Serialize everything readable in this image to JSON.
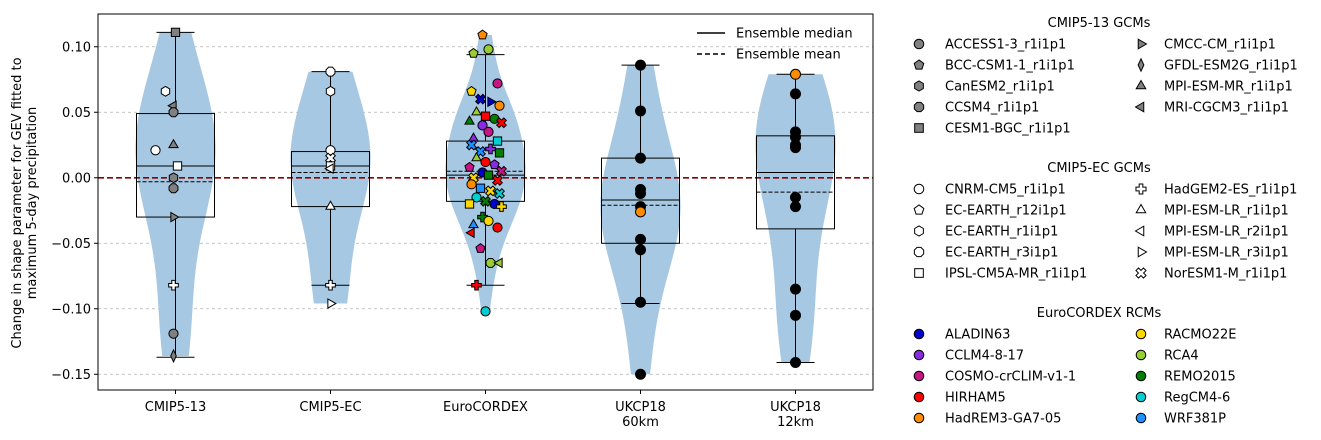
{
  "chart_data": {
    "type": "box-violin-scatter",
    "ylabel_line1": "Change in shape parameter for GEV fitted to",
    "ylabel_line2": "maximum 5-day precipitation",
    "ylim": [
      -0.162,
      0.125
    ],
    "yticks": [
      -0.15,
      -0.1,
      -0.05,
      0.0,
      0.05,
      0.1
    ],
    "ytick_labels": [
      "−0.15",
      "−0.10",
      "−0.05",
      "0.00",
      "0.05",
      "0.10"
    ],
    "grid": "y-dashed",
    "zero_line_color": "#8b0000",
    "violin_color": "#a6c8e2",
    "groups": [
      {
        "label": "CMIP5-13",
        "label2": "",
        "median": 0.009,
        "mean": -0.003,
        "q1": -0.03,
        "q3": 0.049,
        "whisker_low": -0.137,
        "whisker_high": 0.111
      },
      {
        "label": "CMIP5-EC",
        "label2": "",
        "median": 0.009,
        "mean": 0.004,
        "q1": -0.022,
        "q3": 0.02,
        "whisker_low": -0.082,
        "whisker_high": 0.081
      },
      {
        "label": "EuroCORDEX",
        "label2": "",
        "median": 0.002,
        "mean": 0.005,
        "q1": -0.018,
        "q3": 0.028,
        "whisker_low": -0.082,
        "whisker_high": 0.094
      },
      {
        "label": "UKCP18",
        "label2": "60km",
        "median": -0.017,
        "mean": -0.021,
        "q1": -0.05,
        "q3": 0.015,
        "whisker_low": -0.096,
        "whisker_high": 0.086
      },
      {
        "label": "UKCP18",
        "label2": "12km",
        "median": 0.004,
        "mean": -0.011,
        "q1": -0.039,
        "q3": 0.032,
        "whisker_low": -0.141,
        "whisker_high": 0.079
      }
    ],
    "ensemble_legend": [
      {
        "label": "Ensemble median",
        "style": "solid"
      },
      {
        "label": "Ensemble mean",
        "style": "dashed"
      }
    ],
    "legend_groups": [
      {
        "title": "CMIP5-13 GCMs",
        "columns": [
          [
            {
              "label": "ACCESS1-3_r1i1p1",
              "marker": "circle",
              "color": "#808080"
            },
            {
              "label": "BCC-CSM1-1_r1i1p1",
              "marker": "pentagon",
              "color": "#808080"
            },
            {
              "label": "CanESM2_r1i1p1",
              "marker": "hexagon",
              "color": "#808080"
            },
            {
              "label": "CCSM4_r1i1p1",
              "marker": "octagon",
              "color": "#808080"
            },
            {
              "label": "CESM1-BGC_r1i1p1",
              "marker": "square",
              "color": "#808080"
            }
          ],
          [
            {
              "label": "CMCC-CM_r1i1p1",
              "marker": "tri-right",
              "color": "#808080"
            },
            {
              "label": "GFDL-ESM2G_r1i1p1",
              "marker": "thin-diamond",
              "color": "#808080"
            },
            {
              "label": "MPI-ESM-MR_r1i1p1",
              "marker": "tri-up",
              "color": "#808080"
            },
            {
              "label": "MRI-CGCM3_r1i1p1",
              "marker": "tri-left",
              "color": "#808080"
            }
          ]
        ]
      },
      {
        "title": "CMIP5-EC GCMs",
        "columns": [
          [
            {
              "label": "CNRM-CM5_r1i1p1",
              "marker": "circle",
              "color": "#ffffff"
            },
            {
              "label": "EC-EARTH_r12i1p1",
              "marker": "pentagon",
              "color": "#ffffff"
            },
            {
              "label": "EC-EARTH_r1i1p1",
              "marker": "hexagon",
              "color": "#ffffff"
            },
            {
              "label": "EC-EARTH_r3i1p1",
              "marker": "octagon",
              "color": "#ffffff"
            },
            {
              "label": "IPSL-CM5A-MR_r1i1p1",
              "marker": "square",
              "color": "#ffffff"
            }
          ],
          [
            {
              "label": "HadGEM2-ES_r1i1p1",
              "marker": "plus",
              "color": "#ffffff"
            },
            {
              "label": "MPI-ESM-LR_r1i1p1",
              "marker": "tri-up",
              "color": "#ffffff"
            },
            {
              "label": "MPI-ESM-LR_r2i1p1",
              "marker": "tri-left",
              "color": "#ffffff"
            },
            {
              "label": "MPI-ESM-LR_r3i1p1",
              "marker": "tri-right",
              "color": "#ffffff"
            },
            {
              "label": "NorESM1-M_r1i1p1",
              "marker": "x",
              "color": "#ffffff"
            }
          ]
        ]
      },
      {
        "title": "EuroCORDEX RCMs",
        "columns": [
          [
            {
              "label": "ALADIN63",
              "marker": "circle",
              "color": "#0000cd"
            },
            {
              "label": "CCLM4-8-17",
              "marker": "circle",
              "color": "#8a2be2"
            },
            {
              "label": "COSMO-crCLIM-v1-1",
              "marker": "circle",
              "color": "#c71585"
            },
            {
              "label": "HIRHAM5",
              "marker": "circle",
              "color": "#ff0000"
            },
            {
              "label": "HadREM3-GA7-05",
              "marker": "circle",
              "color": "#ff8c00"
            }
          ],
          [
            {
              "label": "RACMO22E",
              "marker": "circle",
              "color": "#ffd700"
            },
            {
              "label": "RCA4",
              "marker": "circle",
              "color": "#9acd32"
            },
            {
              "label": "REMO2015",
              "marker": "circle",
              "color": "#008000"
            },
            {
              "label": "RegCM4-6",
              "marker": "circle",
              "color": "#00ced1"
            },
            {
              "label": "WRF381P",
              "marker": "circle",
              "color": "#1e90ff"
            }
          ]
        ]
      }
    ],
    "points": [
      [
        0,
        0.111,
        "square",
        "#808080"
      ],
      [
        0,
        0.066,
        "hexagon",
        "#ffffff"
      ],
      [
        0,
        0.055,
        "tri-left",
        "#808080"
      ],
      [
        0,
        0.05,
        "octagon",
        "#808080"
      ],
      [
        0,
        0.025,
        "tri-up",
        "#808080"
      ],
      [
        0,
        0.021,
        "circle",
        "#ffffff"
      ],
      [
        0,
        0.009,
        "square",
        "#ffffff"
      ],
      [
        0,
        0.0,
        "hexagon",
        "#808080"
      ],
      [
        0,
        -0.008,
        "octagon",
        "#808080"
      ],
      [
        0,
        -0.03,
        "tri-right",
        "#808080"
      ],
      [
        0,
        -0.082,
        "plus",
        "#ffffff"
      ],
      [
        0,
        -0.119,
        "circle",
        "#808080"
      ],
      [
        0,
        -0.136,
        "thin-diamond",
        "#808080"
      ],
      [
        1,
        0.081,
        "octagon",
        "#ffffff"
      ],
      [
        1,
        0.066,
        "hexagon",
        "#ffffff"
      ],
      [
        1,
        0.021,
        "circle",
        "#ffffff"
      ],
      [
        1,
        0.015,
        "x",
        "#ffffff"
      ],
      [
        1,
        0.009,
        "square",
        "#ffffff"
      ],
      [
        1,
        0.007,
        "tri-left",
        "#ffffff"
      ],
      [
        1,
        -0.022,
        "tri-up",
        "#ffffff"
      ],
      [
        1,
        -0.082,
        "plus",
        "#ffffff"
      ],
      [
        1,
        -0.096,
        "tri-right",
        "#ffffff"
      ],
      [
        2,
        0.109,
        "pentagon",
        "#ff8c00"
      ],
      [
        2,
        0.098,
        "circle",
        "#9acd32"
      ],
      [
        2,
        0.095,
        "pentagon",
        "#9acd32"
      ],
      [
        2,
        0.072,
        "circle",
        "#c71585"
      ],
      [
        2,
        0.066,
        "pentagon",
        "#ffd700"
      ],
      [
        2,
        0.06,
        "x",
        "#0000cd"
      ],
      [
        2,
        0.058,
        "tri-right",
        "#0000cd"
      ],
      [
        2,
        0.055,
        "circle",
        "#ff8c00"
      ],
      [
        2,
        0.05,
        "tri-up",
        "#9acd32"
      ],
      [
        2,
        0.047,
        "square",
        "#ff0000"
      ],
      [
        2,
        0.045,
        "circle",
        "#008000"
      ],
      [
        2,
        0.043,
        "tri-up",
        "#008000"
      ],
      [
        2,
        0.042,
        "x",
        "#ff0000"
      ],
      [
        2,
        0.04,
        "circle",
        "#8a2be2"
      ],
      [
        2,
        0.035,
        "circle",
        "#c71585"
      ],
      [
        2,
        0.03,
        "tri-up",
        "#8a2be2"
      ],
      [
        2,
        0.028,
        "square",
        "#00ced1"
      ],
      [
        2,
        0.025,
        "x",
        "#1e90ff"
      ],
      [
        2,
        0.02,
        "x",
        "#1e90ff"
      ],
      [
        2,
        0.022,
        "plus",
        "#8a2be2"
      ],
      [
        2,
        0.019,
        "square",
        "#008000"
      ],
      [
        2,
        0.015,
        "tri-up",
        "#9acd32"
      ],
      [
        2,
        0.012,
        "circle",
        "#ff0000"
      ],
      [
        2,
        0.01,
        "pentagon",
        "#8a2be2"
      ],
      [
        2,
        0.008,
        "pentagon",
        "#c71585"
      ],
      [
        2,
        0.005,
        "x",
        "#c71585"
      ],
      [
        2,
        0.004,
        "circle",
        "#0000cd"
      ],
      [
        2,
        0.002,
        "square",
        "#008000"
      ],
      [
        2,
        0.0,
        "x",
        "#ffd700"
      ],
      [
        2,
        -0.002,
        "x",
        "#ff0000"
      ],
      [
        2,
        -0.005,
        "circle",
        "#ff8c00"
      ],
      [
        2,
        -0.008,
        "square",
        "#1e90ff"
      ],
      [
        2,
        -0.01,
        "x",
        "#ffd700"
      ],
      [
        2,
        -0.012,
        "x",
        "#00ced1"
      ],
      [
        2,
        -0.015,
        "circle",
        "#00ced1"
      ],
      [
        2,
        -0.018,
        "x",
        "#008000"
      ],
      [
        2,
        -0.02,
        "circle",
        "#0000cd"
      ],
      [
        2,
        -0.02,
        "square",
        "#ffd700"
      ],
      [
        2,
        -0.022,
        "plus",
        "#ffd700"
      ],
      [
        2,
        -0.03,
        "plus",
        "#008000"
      ],
      [
        2,
        -0.033,
        "circle",
        "#ffd700"
      ],
      [
        2,
        -0.036,
        "tri-up",
        "#1e90ff"
      ],
      [
        2,
        -0.038,
        "circle",
        "#ff0000"
      ],
      [
        2,
        -0.042,
        "tri-left",
        "#ff0000"
      ],
      [
        2,
        -0.054,
        "pentagon",
        "#c71585"
      ],
      [
        2,
        -0.065,
        "octagon",
        "#9acd32"
      ],
      [
        2,
        -0.065,
        "tri-left",
        "#9acd32"
      ],
      [
        2,
        -0.082,
        "plus",
        "#ff0000"
      ],
      [
        2,
        -0.102,
        "circle",
        "#00ced1"
      ],
      [
        3,
        0.086,
        "circle",
        "#000000"
      ],
      [
        3,
        0.051,
        "circle",
        "#000000"
      ],
      [
        3,
        0.015,
        "circle",
        "#000000"
      ],
      [
        3,
        -0.009,
        "circle",
        "#000000"
      ],
      [
        3,
        -0.012,
        "circle",
        "#000000"
      ],
      [
        3,
        -0.022,
        "circle",
        "#000000"
      ],
      [
        3,
        -0.026,
        "circle",
        "#ff8c00"
      ],
      [
        3,
        -0.047,
        "circle",
        "#000000"
      ],
      [
        3,
        -0.055,
        "circle",
        "#000000"
      ],
      [
        3,
        -0.095,
        "circle",
        "#000000"
      ],
      [
        3,
        -0.15,
        "circle",
        "#000000"
      ],
      [
        4,
        0.079,
        "circle",
        "#ff8c00"
      ],
      [
        4,
        0.064,
        "circle",
        "#000000"
      ],
      [
        4,
        0.035,
        "circle",
        "#000000"
      ],
      [
        4,
        0.031,
        "circle",
        "#000000"
      ],
      [
        4,
        0.025,
        "circle",
        "#000000"
      ],
      [
        4,
        0.023,
        "circle",
        "#000000"
      ],
      [
        4,
        -0.015,
        "circle",
        "#000000"
      ],
      [
        4,
        -0.022,
        "circle",
        "#000000"
      ],
      [
        4,
        -0.085,
        "circle",
        "#000000"
      ],
      [
        4,
        -0.105,
        "circle",
        "#000000"
      ],
      [
        4,
        -0.141,
        "circle",
        "#000000"
      ]
    ]
  }
}
